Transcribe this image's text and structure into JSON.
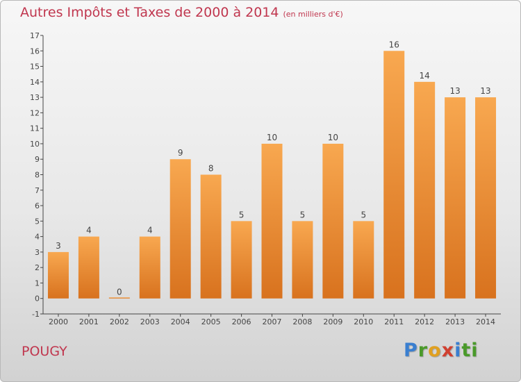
{
  "title": "Autres Impôts et Taxes de 2000 à 2014",
  "title_unit": "(en milliers d'€)",
  "commune": "POUGY",
  "logo": [
    "P",
    "r",
    "o",
    "x",
    "i",
    "ti"
  ],
  "colors": {
    "bar_top": "#f8a850",
    "bar_bottom": "#d8721e",
    "title": "#c0364e"
  },
  "chart_data": {
    "type": "bar",
    "categories": [
      "2000",
      "2001",
      "2002",
      "2003",
      "2004",
      "2005",
      "2006",
      "2007",
      "2008",
      "2009",
      "2010",
      "2011",
      "2012",
      "2013",
      "2014"
    ],
    "values": [
      3,
      4,
      0,
      4,
      9,
      8,
      5,
      10,
      5,
      10,
      5,
      16,
      14,
      13,
      13
    ],
    "data_labels": [
      "3",
      "4",
      "0",
      "4",
      "9",
      "8",
      "5",
      "10",
      "5",
      "10",
      "5",
      "16",
      "14",
      "13",
      "13"
    ],
    "ylim": [
      -1,
      17
    ],
    "yticks": [
      -1,
      0,
      1,
      2,
      3,
      4,
      5,
      6,
      7,
      8,
      9,
      10,
      11,
      12,
      13,
      14,
      15,
      16,
      17
    ],
    "grid": false,
    "legend": "none"
  }
}
